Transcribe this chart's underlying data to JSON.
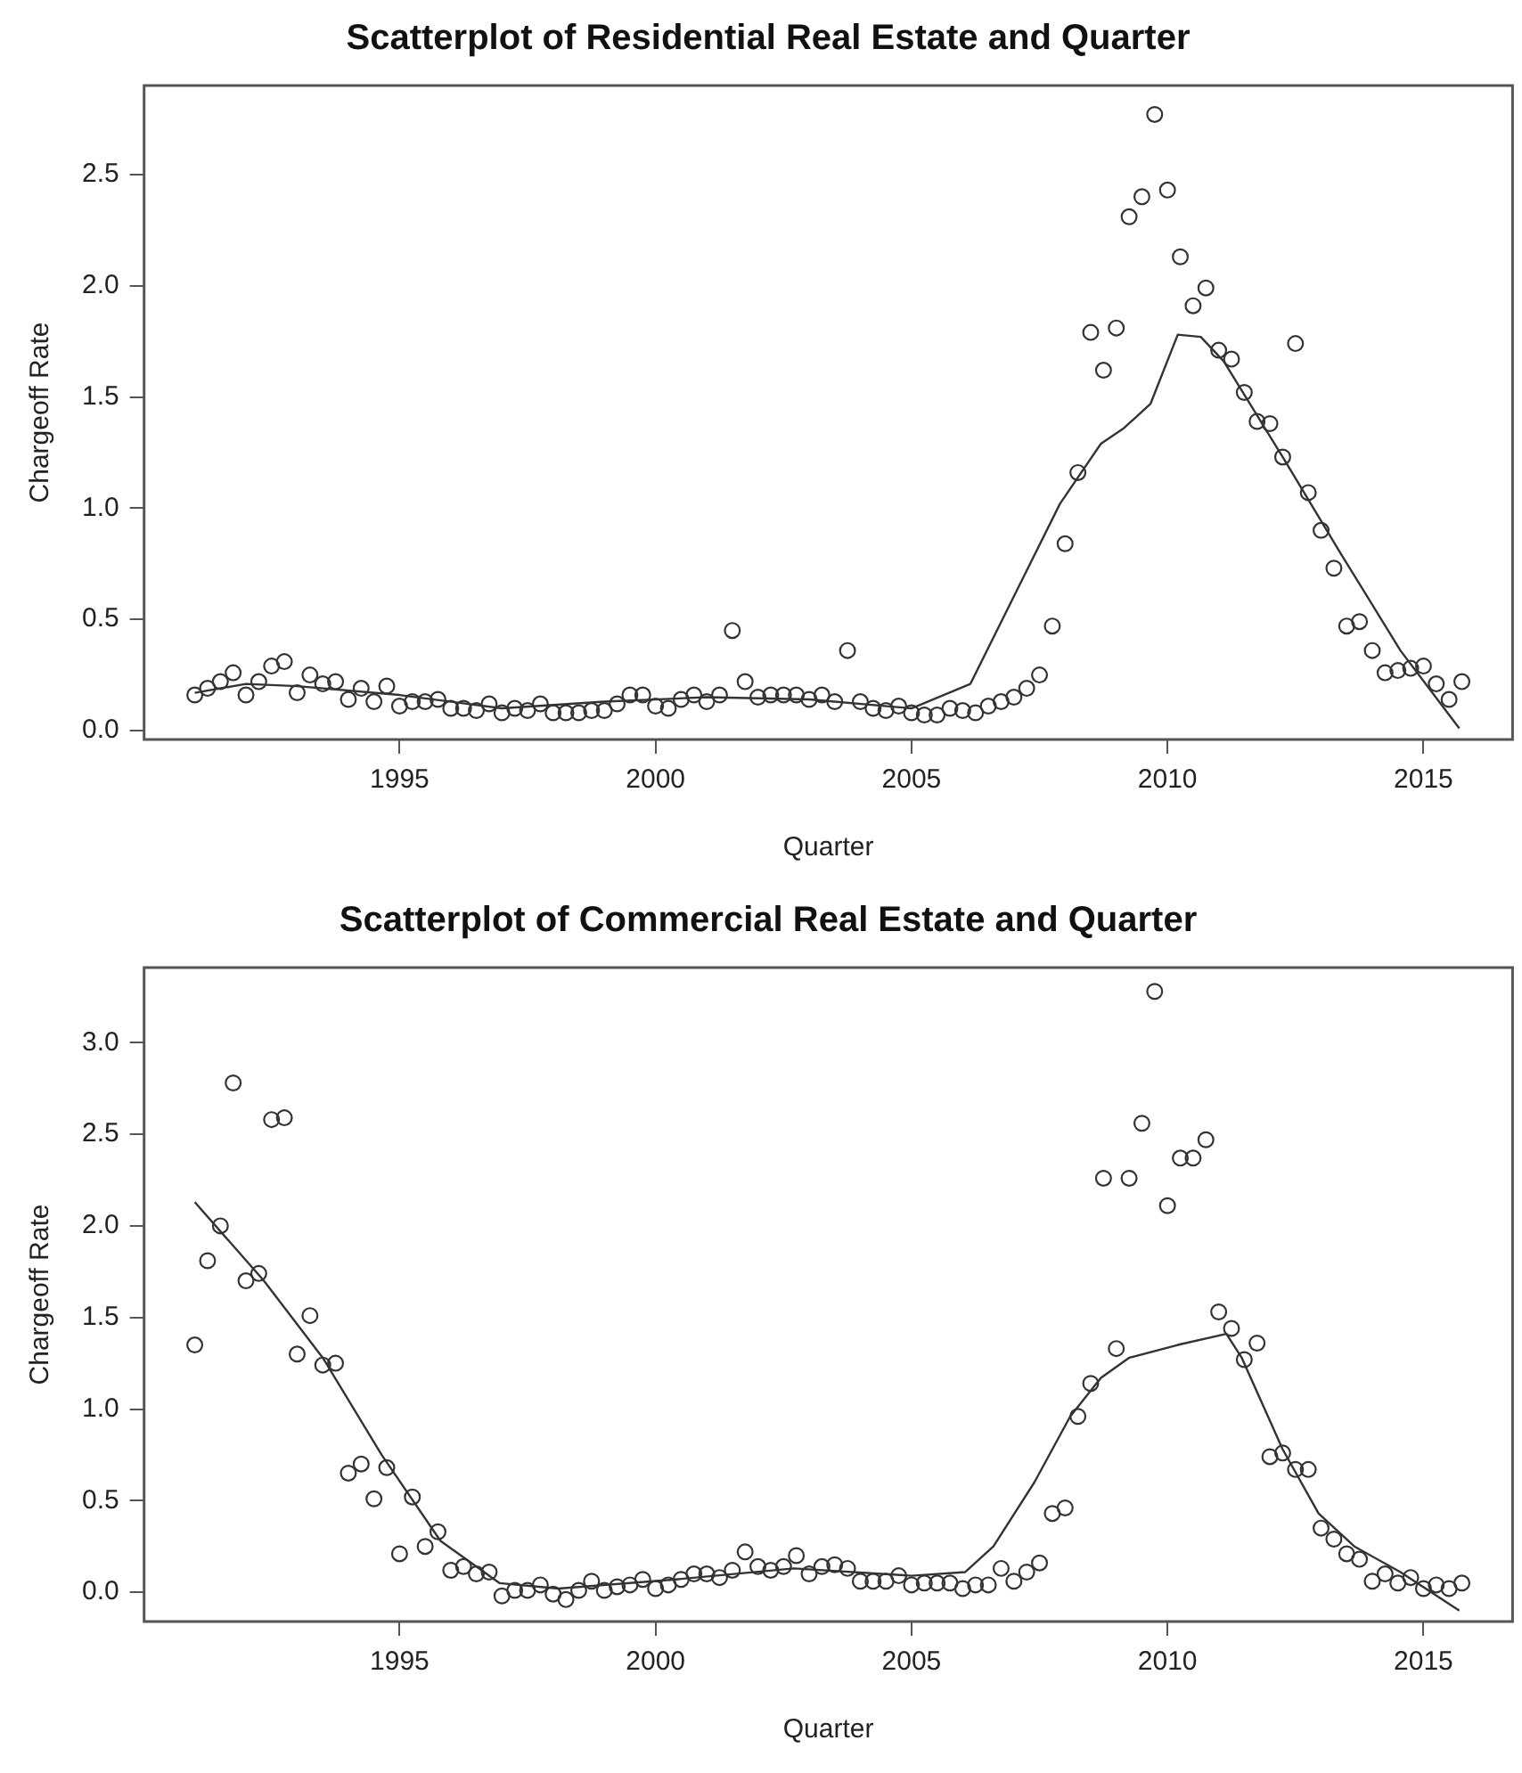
{
  "chart_data": [
    {
      "type": "scatter",
      "title": "Scatterplot of Residential Real Estate and Quarter",
      "xlabel": "Quarter",
      "ylabel": "Chargeoff Rate",
      "xlim": [
        1990.01,
        2016.74
      ],
      "xticks": [
        1995,
        2000,
        2005,
        2010,
        2015
      ],
      "ylim": [
        -0.04,
        2.9
      ],
      "yticks": [
        {
          "value": 0,
          "label": "0.0"
        },
        0.5,
        {
          "value": 1,
          "label": "1.0"
        },
        1.5,
        {
          "value": 2,
          "label": "2.0"
        },
        2.5
      ],
      "grid": false,
      "legend": false,
      "series": [
        {
          "color": "#333333",
          "marker": "circle",
          "x": [
            1991,
            1991.25,
            1991.5,
            1991.75,
            1992,
            1992.25,
            1992.5,
            1992.75,
            1993,
            1993.25,
            1993.5,
            1993.75,
            1994,
            1994.25,
            1994.5,
            1994.75,
            1995,
            1995.25,
            1995.5,
            1995.75,
            1996,
            1996.25,
            1996.5,
            1996.75,
            1997,
            1997.25,
            1997.5,
            1997.75,
            1998,
            1998.25,
            1998.5,
            1998.75,
            1999,
            1999.25,
            1999.5,
            1999.75,
            2000,
            2000.25,
            2000.5,
            2000.75,
            2001,
            2001.25,
            2001.5,
            2001.75,
            2002,
            2002.25,
            2002.5,
            2002.75,
            2003,
            2003.25,
            2003.5,
            2003.75,
            2004,
            2004.25,
            2004.5,
            2004.75,
            2005,
            2005.25,
            2005.5,
            2005.75,
            2006,
            2006.25,
            2006.5,
            2006.75,
            2007,
            2007.25,
            2007.5,
            2007.75,
            2008,
            2008.25,
            2008.5,
            2008.75,
            2009,
            2009.25,
            2009.5,
            2009.75,
            2010,
            2010.25,
            2010.5,
            2010.75,
            2011,
            2011.25,
            2011.5,
            2011.75,
            2012,
            2012.25,
            2012.5,
            2012.75,
            2013,
            2013.25,
            2013.5,
            2013.75,
            2014,
            2014.25,
            2014.5,
            2014.75,
            2015,
            2015.25,
            2015.5,
            2015.75
          ],
          "values": [
            0.16,
            0.19,
            0.22,
            0.26,
            0.16,
            0.22,
            0.29,
            0.31,
            0.17,
            0.25,
            0.21,
            0.22,
            0.14,
            0.19,
            0.13,
            0.2,
            0.11,
            0.13,
            0.13,
            0.14,
            0.1,
            0.1,
            0.09,
            0.12,
            0.08,
            0.1,
            0.09,
            0.12,
            0.08,
            0.08,
            0.08,
            0.09,
            0.09,
            0.12,
            0.16,
            0.16,
            0.11,
            0.1,
            0.14,
            0.16,
            0.13,
            0.16,
            0.45,
            0.22,
            0.15,
            0.16,
            0.16,
            0.16,
            0.14,
            0.16,
            0.13,
            0.36,
            0.13,
            0.1,
            0.09,
            0.11,
            0.08,
            0.07,
            0.07,
            0.1,
            0.09,
            0.08,
            0.11,
            0.13,
            0.15,
            0.19,
            0.25,
            0.47,
            0.84,
            1.16,
            1.79,
            1.62,
            1.81,
            2.31,
            2.4,
            2.77,
            2.43,
            2.13,
            1.91,
            1.99,
            1.71,
            1.67,
            1.52,
            1.39,
            1.38,
            1.23,
            1.74,
            1.07,
            0.9,
            0.73,
            0.47,
            0.49,
            0.36,
            0.26,
            0.27,
            0.28,
            0.29,
            0.21,
            0.14,
            0.22
          ]
        },
        {
          "type": "line",
          "color": "#333333",
          "x": [
            1991,
            1992,
            1993,
            1995,
            1997,
            1999,
            2001,
            2003,
            2005,
            2006.15,
            2007.1,
            2007.9,
            2008.7,
            2009.15,
            2009.67,
            2010.2,
            2010.65,
            2011.1,
            2012.25,
            2013.4,
            2014.55,
            2015.7
          ],
          "values": [
            0.17,
            0.21,
            0.2,
            0.16,
            0.1,
            0.13,
            0.15,
            0.14,
            0.1,
            0.21,
            0.65,
            1.02,
            1.29,
            1.36,
            1.47,
            1.78,
            1.77,
            1.66,
            1.23,
            0.79,
            0.36,
            0.01
          ]
        }
      ]
    },
    {
      "type": "scatter",
      "title": "Scatterplot of Commercial Real Estate and Quarter",
      "xlabel": "Quarter",
      "ylabel": "Chargeoff Rate",
      "xlim": [
        1990.01,
        2016.74
      ],
      "xticks": [
        1995,
        2000,
        2005,
        2010,
        2015
      ],
      "ylim": [
        -0.16,
        3.41
      ],
      "yticks": [
        {
          "value": 0,
          "label": "0.0"
        },
        0.5,
        {
          "value": 1,
          "label": "1.0"
        },
        1.5,
        {
          "value": 2,
          "label": "2.0"
        },
        2.5,
        {
          "value": 3,
          "label": "3.0"
        }
      ],
      "grid": false,
      "legend": false,
      "series": [
        {
          "color": "#333333",
          "marker": "circle",
          "x": [
            1991,
            1991.25,
            1991.5,
            1991.75,
            1992,
            1992.25,
            1992.5,
            1992.75,
            1993,
            1993.25,
            1993.5,
            1993.75,
            1994,
            1994.25,
            1994.5,
            1994.75,
            1995,
            1995.25,
            1995.5,
            1995.75,
            1996,
            1996.25,
            1996.5,
            1996.75,
            1997,
            1997.25,
            1997.5,
            1997.75,
            1998,
            1998.25,
            1998.5,
            1998.75,
            1999,
            1999.25,
            1999.5,
            1999.75,
            2000,
            2000.25,
            2000.5,
            2000.75,
            2001,
            2001.25,
            2001.5,
            2001.75,
            2002,
            2002.25,
            2002.5,
            2002.75,
            2003,
            2003.25,
            2003.5,
            2003.75,
            2004,
            2004.25,
            2004.5,
            2004.75,
            2005,
            2005.25,
            2005.5,
            2005.75,
            2006,
            2006.25,
            2006.5,
            2006.75,
            2007,
            2007.25,
            2007.5,
            2007.75,
            2008,
            2008.25,
            2008.5,
            2008.75,
            2009,
            2009.25,
            2009.5,
            2009.75,
            2010,
            2010.25,
            2010.5,
            2010.75,
            2011,
            2011.25,
            2011.5,
            2011.75,
            2012,
            2012.25,
            2012.5,
            2012.75,
            2013,
            2013.25,
            2013.5,
            2013.75,
            2014,
            2014.25,
            2014.5,
            2014.75,
            2015,
            2015.25,
            2015.5,
            2015.75
          ],
          "values": [
            1.35,
            1.81,
            2,
            2.78,
            1.7,
            1.74,
            2.58,
            2.59,
            1.3,
            1.51,
            1.24,
            1.25,
            0.65,
            0.7,
            0.51,
            0.68,
            0.21,
            0.52,
            0.25,
            0.33,
            0.12,
            0.14,
            0.1,
            0.11,
            -0.02,
            0.01,
            0.01,
            0.04,
            -0.01,
            -0.04,
            0.01,
            0.06,
            0.01,
            0.03,
            0.04,
            0.07,
            0.02,
            0.04,
            0.07,
            0.1,
            0.1,
            0.08,
            0.12,
            0.22,
            0.14,
            0.12,
            0.14,
            0.2,
            0.1,
            0.14,
            0.15,
            0.13,
            0.06,
            0.06,
            0.06,
            0.09,
            0.04,
            0.05,
            0.05,
            0.05,
            0.02,
            0.04,
            0.04,
            0.13,
            0.06,
            0.11,
            0.16,
            0.43,
            0.46,
            0.96,
            1.14,
            2.26,
            1.33,
            2.26,
            2.56,
            3.28,
            2.11,
            2.37,
            2.37,
            2.47,
            1.53,
            1.44,
            1.27,
            1.36,
            0.74,
            0.76,
            0.67,
            0.67,
            0.35,
            0.29,
            0.21,
            0.18,
            0.06,
            0.1,
            0.05,
            0.08,
            0.02,
            0.04,
            0.02,
            0.05
          ]
        },
        {
          "type": "line",
          "color": "#333333",
          "x": [
            1991,
            1992.35,
            1993.5,
            1994.65,
            1995.8,
            1996.95,
            1998.1,
            2000.4,
            2002.7,
            2005,
            2006.05,
            2006.6,
            2007.4,
            2008.1,
            2008.7,
            2009.25,
            2010.2,
            2011.15,
            2011.45,
            2012.25,
            2012.95,
            2013.65,
            2014.55,
            2015.7
          ],
          "values": [
            2.13,
            1.7,
            1.28,
            0.75,
            0.28,
            0.05,
            0.02,
            0.07,
            0.13,
            0.09,
            0.11,
            0.25,
            0.6,
            0.96,
            1.17,
            1.28,
            1.35,
            1.41,
            1.28,
            0.78,
            0.43,
            0.25,
            0.11,
            -0.1
          ]
        }
      ]
    }
  ]
}
